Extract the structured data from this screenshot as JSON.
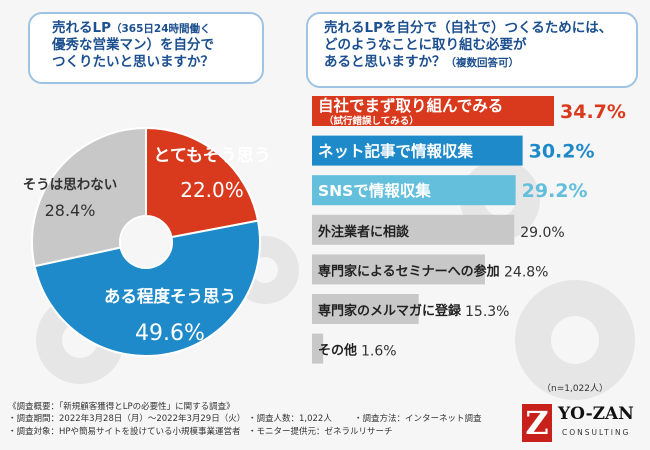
{
  "q1": {
    "line1_main": "売れるLP",
    "line1_sub": "（365日24時間働く",
    "line2": "優秀な営業マン）を自分で",
    "line3": "つくりたいと思いますか？"
  },
  "q2": {
    "line1": "売れるLPを自分で（自社で）つくるためには、",
    "line2": "どのようなことに取り組む必要が",
    "line3_main": "あると思いますか？",
    "line3_sub": "（複数回答可）"
  },
  "colors": {
    "red": "#d93a1e",
    "blue": "#1f8ac9",
    "lightblue": "#63bfdb",
    "gray": "#c8c8c8",
    "darkgray": "#bdbdbd"
  },
  "chart_data": [
    {
      "type": "pie",
      "slices": [
        {
          "label": "とてもそう思う",
          "value": 22.0,
          "value_text": "22.0%",
          "color": "#d93a1e"
        },
        {
          "label": "ある程度そう思う",
          "value": 49.6,
          "value_text": "49.6%",
          "color": "#1f8ac9"
        },
        {
          "label": "そうは思わない",
          "value": 28.4,
          "value_text": "28.4%",
          "color": "#c8c8c8"
        }
      ]
    },
    {
      "type": "bar",
      "orientation": "horizontal",
      "categories": [
        "自社でまず取り組んでみる",
        "ネット記事で情報収集",
        "SNSで情報収集",
        "外注業者に相談",
        "専門家によるセミナーへの参加",
        "専門家のメルマガに登録",
        "その他"
      ],
      "sub_labels": [
        "（試行錯誤してみる）",
        "",
        "",
        "",
        "",
        "",
        ""
      ],
      "values": [
        34.7,
        30.2,
        29.2,
        29.0,
        24.8,
        15.3,
        1.6
      ],
      "value_texts": [
        "34.7%",
        "30.2%",
        "29.2%",
        "29.0%",
        "24.8%",
        "15.3%",
        "1.6%"
      ],
      "colors": [
        "#d93a1e",
        "#1f8ac9",
        "#63bfdb",
        "#c8c8c8",
        "#c8c8c8",
        "#c8c8c8",
        "#c8c8c8"
      ]
    }
  ],
  "note": "（n=1,022人）",
  "footer": {
    "l1": "《調査概要：「新規顧客獲得とLPの必要性」に関する調査》",
    "l2a": "・調査期間：2022年3月28日（月）〜2022年3月29日（火）",
    "l2b": "・調査人数：1,022人",
    "l2c": "・調査方法：インターネット調査",
    "l3a": "・調査対象：HPや簡易サイトを設けている小規模事業運営者",
    "l3b": "・モニター提供元：ゼネラルリサーチ"
  },
  "logo": {
    "mark": "Z",
    "name": "YO-ZAN",
    "sub": "CONSULTING"
  }
}
